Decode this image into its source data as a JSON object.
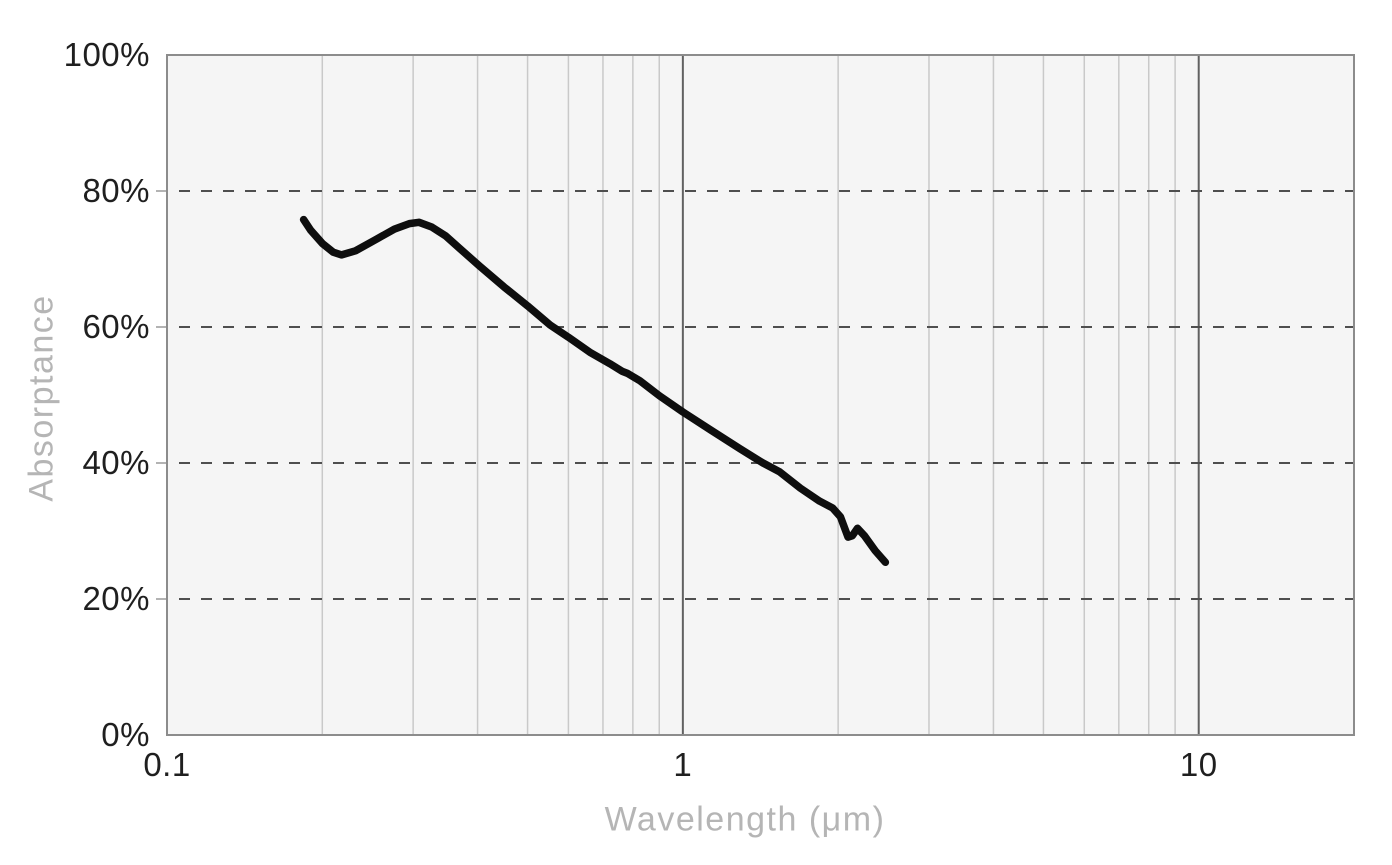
{
  "chart_data": {
    "type": "line",
    "title": "",
    "xlabel": "Wavelength (μm)",
    "ylabel": "Absorptance",
    "x_scale": "log",
    "xlim": [
      0.1,
      20
    ],
    "ylim": [
      0,
      100
    ],
    "grid": "on",
    "legend": "none",
    "x_ticks": [
      {
        "value": 0.1,
        "label": "0.1"
      },
      {
        "value": 1,
        "label": "1"
      },
      {
        "value": 10,
        "label": "10"
      }
    ],
    "y_ticks": [
      {
        "value": 0,
        "label": "0%"
      },
      {
        "value": 20,
        "label": "20%"
      },
      {
        "value": 40,
        "label": "40%"
      },
      {
        "value": 60,
        "label": "60%"
      },
      {
        "value": 80,
        "label": "80%"
      },
      {
        "value": 100,
        "label": "100%"
      }
    ],
    "x_minor_gridlines": [
      0.2,
      0.3,
      0.4,
      0.5,
      0.6,
      0.7,
      0.8,
      0.9,
      2,
      3,
      4,
      5,
      6,
      7,
      8,
      9
    ],
    "x_major_gridlines": [
      1,
      10
    ],
    "y_dashed_gridlines": [
      20,
      40,
      60,
      80
    ],
    "series": [
      {
        "name": "absorptance",
        "color": "#0e0e0e",
        "points": [
          [
            0.184,
            75.8
          ],
          [
            0.19,
            74.2
          ],
          [
            0.2,
            72.3
          ],
          [
            0.21,
            71.0
          ],
          [
            0.218,
            70.6
          ],
          [
            0.232,
            71.2
          ],
          [
            0.253,
            72.8
          ],
          [
            0.276,
            74.4
          ],
          [
            0.295,
            75.2
          ],
          [
            0.308,
            75.4
          ],
          [
            0.326,
            74.7
          ],
          [
            0.347,
            73.4
          ],
          [
            0.37,
            71.5
          ],
          [
            0.403,
            69.0
          ],
          [
            0.45,
            65.9
          ],
          [
            0.5,
            63.1
          ],
          [
            0.553,
            60.3
          ],
          [
            0.6,
            58.5
          ],
          [
            0.66,
            56.3
          ],
          [
            0.722,
            54.6
          ],
          [
            0.762,
            53.5
          ],
          [
            0.78,
            53.2
          ],
          [
            0.825,
            52.1
          ],
          [
            0.9,
            49.9
          ],
          [
            1.0,
            47.5
          ],
          [
            1.13,
            44.9
          ],
          [
            1.29,
            42.1
          ],
          [
            1.43,
            40.0
          ],
          [
            1.54,
            38.7
          ],
          [
            1.69,
            36.3
          ],
          [
            1.84,
            34.4
          ],
          [
            1.95,
            33.4
          ],
          [
            2.02,
            32.1
          ],
          [
            2.09,
            29.1
          ],
          [
            2.13,
            29.3
          ],
          [
            2.18,
            30.4
          ],
          [
            2.25,
            29.3
          ],
          [
            2.36,
            27.1
          ],
          [
            2.47,
            25.4
          ]
        ]
      }
    ]
  },
  "colors": {
    "page_background": "#ffffff",
    "plot_background": "#f5f5f5",
    "minor_gridline": "#c9c9c9",
    "major_gridline": "#616161",
    "dashed_gridline": "#4f4f4f",
    "plot_border": "#8c8c8c",
    "axis_tick_stub": "#b3b3b3",
    "tick_label_text": "#1f1f1f",
    "axis_title_text": "#b5b5b5",
    "curve": "#0e0e0e"
  }
}
